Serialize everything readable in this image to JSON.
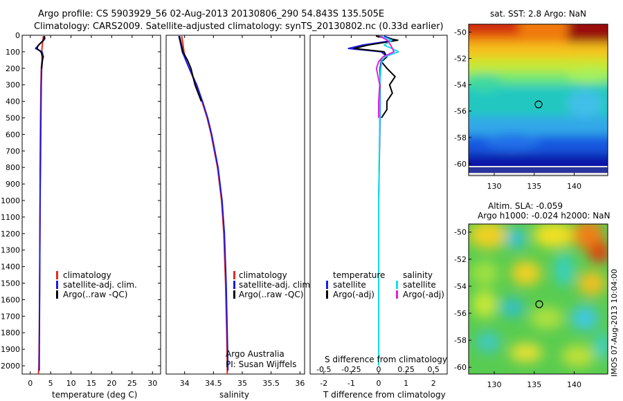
{
  "title": {
    "line1": "Argo profile: CS 5903929_56 02-Aug-2013 20130806_290 54.843S 135.505E",
    "line2": "Climatology: CARS2009. Satellite-adjusted climatology: synTS_20130802.nc (0.33d earlier)"
  },
  "colors": {
    "climatology": "#e8281c",
    "satellite": "#1a1ae6",
    "argo": "#000000",
    "sat_salinity": "#10e0e8",
    "argo_salinity": "#e020e0"
  },
  "chart_data": [
    {
      "type": "line",
      "id": "temperature",
      "xlabel": "temperature (deg C)",
      "xlim": [
        -2,
        32
      ],
      "xticks": [
        "0",
        "5",
        "10",
        "15",
        "20",
        "25",
        "30"
      ],
      "ylim": [
        0,
        2050
      ],
      "yticks": [
        "0",
        "100",
        "200",
        "300",
        "400",
        "500",
        "600",
        "700",
        "800",
        "900",
        "1000",
        "1100",
        "1200",
        "1300",
        "1400",
        "1500",
        "1600",
        "1700",
        "1800",
        "1900",
        "2000"
      ],
      "legend": [
        "climatology",
        "satellite-adj. clim.",
        "Argo(..raw -QC)"
      ],
      "series": [
        {
          "name": "climatology",
          "depth": [
            5,
            50,
            100,
            150,
            200,
            300,
            500,
            800,
            1000,
            1500,
            1800,
            2000,
            2050
          ],
          "values": [
            3.2,
            3.0,
            2.8,
            2.9,
            2.7,
            2.6,
            2.5,
            2.4,
            2.4,
            2.3,
            2.2,
            2.1,
            2.0
          ]
        },
        {
          "name": "satellite-adj. clim.",
          "depth": [
            5,
            20,
            50,
            80,
            100,
            130,
            150,
            200,
            300,
            500,
            800,
            1000,
            1500,
            2000,
            2030
          ],
          "values": [
            3.4,
            3.6,
            2.4,
            1.3,
            2.9,
            3.2,
            3.0,
            2.8,
            2.7,
            2.6,
            2.5,
            2.4,
            2.3,
            2.2,
            2.2
          ]
        },
        {
          "name": "Argo(..raw -QC)",
          "depth": [
            5,
            30,
            60,
            80,
            100,
            130,
            160,
            200
          ],
          "values": [
            3.5,
            3.3,
            2.0,
            1.6,
            2.6,
            3.1,
            2.9,
            2.8
          ]
        }
      ]
    },
    {
      "type": "line",
      "id": "salinity",
      "xlabel": "salinity",
      "xlim": [
        33.68,
        36.08
      ],
      "xticks": [
        "34",
        "34.5",
        "35",
        "35.5",
        "36"
      ],
      "ylim": [
        0,
        2050
      ],
      "legend": [
        "climatology",
        "satellite-adj. clim.",
        "Argo(..raw -QC)"
      ],
      "series": [
        {
          "name": "climatology",
          "depth": [
            5,
            50,
            100,
            150,
            200,
            300,
            400,
            500,
            600,
            800,
            1000,
            1200,
            1500,
            1800,
            2000,
            2050
          ],
          "values": [
            33.95,
            33.97,
            33.99,
            34.02,
            34.08,
            34.2,
            34.3,
            34.39,
            34.46,
            34.57,
            34.64,
            34.68,
            34.71,
            34.73,
            34.74,
            34.74
          ]
        },
        {
          "name": "satellite-adj. clim.",
          "depth": [
            5,
            50,
            100,
            150,
            200,
            300,
            400,
            500,
            600,
            800,
            1000,
            1200,
            1500,
            1800,
            2000,
            2030
          ],
          "values": [
            33.9,
            33.93,
            33.96,
            34.02,
            34.08,
            34.21,
            34.31,
            34.4,
            34.47,
            34.58,
            34.65,
            34.69,
            34.72,
            34.74,
            34.75,
            34.75
          ]
        },
        {
          "name": "Argo(..raw -QC)",
          "depth": [
            5,
            50,
            100,
            150,
            200,
            300,
            400
          ],
          "values": [
            33.91,
            33.94,
            33.97,
            34.05,
            34.11,
            34.18,
            34.29
          ]
        }
      ],
      "annotations": [
        "Argo Australia",
        "PI: Susan Wijffels"
      ]
    },
    {
      "type": "line",
      "id": "difference",
      "xlabel": "T difference from climatology",
      "xlim": [
        -2.5,
        2.5
      ],
      "xticks": [
        "-2",
        "-1",
        "0",
        "1",
        "2"
      ],
      "top_axis_label": "S difference from climatology",
      "top_ticks": [
        "-0.5",
        "-0.25",
        "0",
        "0.25",
        "0.5"
      ],
      "ylim": [
        0,
        2050
      ],
      "legend": {
        "temperature": [
          "satellite",
          "Argo(-adj)"
        ],
        "salinity": [
          "satellite",
          "Argo(-adj)"
        ]
      },
      "legend_headers": [
        "temperature",
        "salinity"
      ],
      "series": [
        {
          "name": "T satellite",
          "depth": [
            5,
            30,
            60,
            80,
            100,
            130,
            150,
            200,
            300,
            500,
            1000,
            1500,
            2000
          ],
          "values": [
            0.2,
            0.6,
            -0.6,
            -1.1,
            0.1,
            0.3,
            0.1,
            0.05,
            0.05,
            0.05,
            0.0,
            0.0,
            0.0
          ]
        },
        {
          "name": "T Argo(-adj)",
          "depth": [
            5,
            30,
            60,
            80,
            100,
            130,
            160,
            200,
            250,
            300,
            350,
            400,
            450,
            500
          ],
          "values": [
            -0.1,
            0.7,
            -0.4,
            -0.9,
            0.2,
            0.3,
            0.1,
            0.3,
            0.6,
            0.4,
            0.5,
            0.3,
            0.3,
            0.1
          ]
        },
        {
          "name": "S satellite",
          "depth": [
            5,
            30,
            60,
            80,
            100,
            130,
            150,
            200,
            300,
            500,
            1000,
            1500,
            2000
          ],
          "values": [
            0.02,
            0.12,
            0.05,
            0.12,
            0.18,
            0.06,
            0.03,
            0.02,
            0.01,
            0.01,
            0.0,
            0.0,
            0.0
          ]
        },
        {
          "name": "S Argo(-adj)",
          "depth": [
            5,
            30,
            60,
            100,
            130,
            160,
            200,
            300,
            400,
            500
          ],
          "values": [
            0.01,
            0.08,
            0.11,
            0.14,
            0.04,
            0.0,
            -0.02,
            0.01,
            0.0,
            0.0
          ]
        }
      ]
    }
  ],
  "map_top": {
    "title": "sat. SST: 2.8 Argo: NaN",
    "yticks": [
      "-50",
      "-52",
      "-54",
      "-56",
      "-58",
      "-60"
    ],
    "xticks": [
      "130",
      "135",
      "140"
    ]
  },
  "map_bottom": {
    "title1": "Altim. SLA: -0.059",
    "title2": "Argo h1000: -0.024 h2000: NaN",
    "yticks": [
      "-50",
      "-52",
      "-54",
      "-56",
      "-58",
      "-60"
    ],
    "xticks": [
      "130",
      "135",
      "140"
    ],
    "side_label": "IMOS 07-Aug-2013 10:04:00"
  }
}
